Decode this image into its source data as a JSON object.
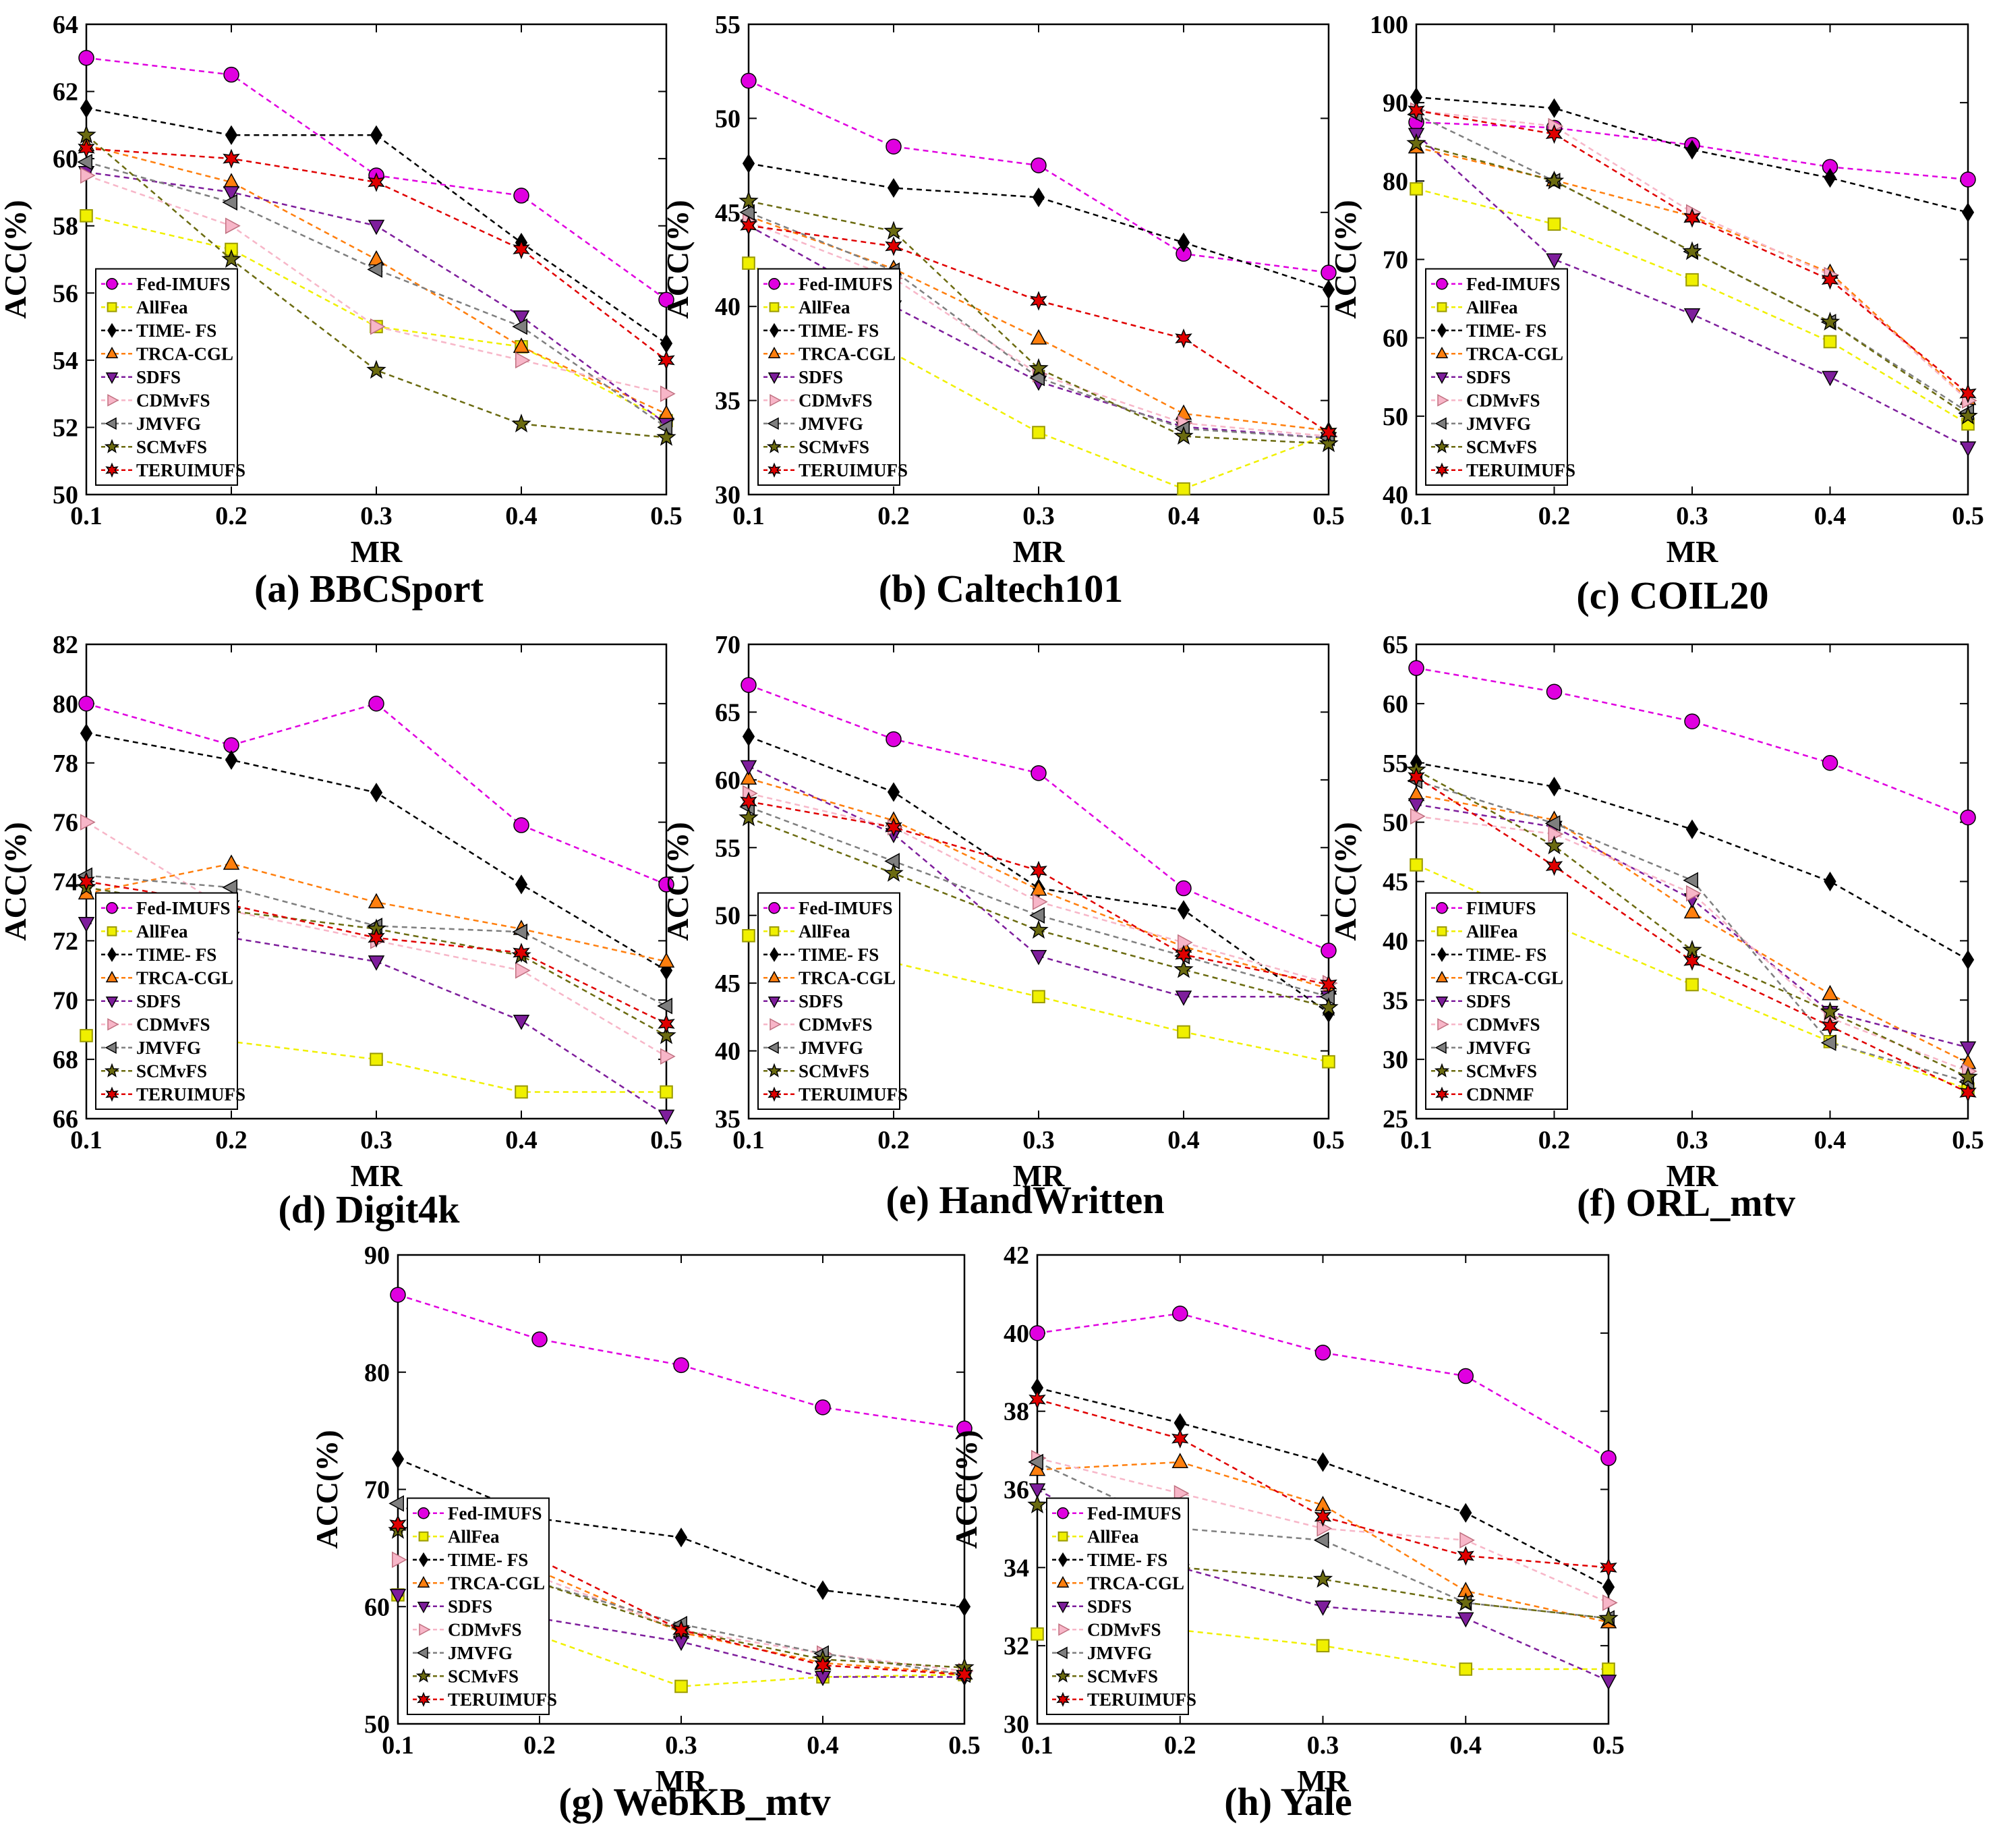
{
  "styles": {
    "Fed-IMUFS": {
      "color": "#e000e0",
      "marker": "circle"
    },
    "FIMUFS": {
      "color": "#e000e0",
      "marker": "circle"
    },
    "AllFea": {
      "color": "#f0f000",
      "marker": "square"
    },
    "TIME- FS": {
      "color": "#000000",
      "marker": "diamond"
    },
    "TRCA-CGL": {
      "color": "#ff7f0e",
      "marker": "triangle-up"
    },
    "SDFS": {
      "color": "#7e1e9c",
      "marker": "triangle-down"
    },
    "CDMvFS": {
      "color": "#f7b6c8",
      "marker": "triangle-right"
    },
    "JMVFG": {
      "color": "#7f7f7f",
      "marker": "triangle-left"
    },
    "SCMvFS": {
      "color": "#6b6b10",
      "marker": "star"
    },
    "TERUIMUFS": {
      "color": "#e00000",
      "marker": "star6"
    },
    "CDNMF": {
      "color": "#e00000",
      "marker": "star6"
    }
  },
  "chart_data": [
    {
      "type": "line",
      "caption": "(a) BBCSport",
      "xlabel": "MR",
      "ylabel": "ACC(%)",
      "x": [
        0.1,
        0.2,
        0.3,
        0.4,
        0.5
      ],
      "xlim": [
        0.1,
        0.5
      ],
      "ylim": [
        50,
        64
      ],
      "xticks": [
        "0.1",
        "0.2",
        "0.3",
        "0.4",
        "0.5"
      ],
      "yticks": [
        "50",
        "52",
        "54",
        "56",
        "58",
        "60",
        "62",
        "64"
      ],
      "legend": "bottom-left",
      "series": [
        {
          "name": "Fed-IMUFS",
          "values": [
            63.0,
            62.5,
            59.5,
            58.9,
            55.8
          ]
        },
        {
          "name": "AllFea",
          "values": [
            58.3,
            57.3,
            55.0,
            54.4,
            52.2
          ]
        },
        {
          "name": "TIME- FS",
          "values": [
            61.5,
            60.7,
            60.7,
            57.5,
            54.5
          ]
        },
        {
          "name": "TRCA-CGL",
          "values": [
            60.4,
            59.3,
            57.0,
            54.4,
            52.4
          ]
        },
        {
          "name": "SDFS",
          "values": [
            59.6,
            59.0,
            58.0,
            55.3,
            52.1
          ]
        },
        {
          "name": "CDMvFS",
          "values": [
            59.5,
            58.0,
            55.0,
            54.0,
            53.0
          ]
        },
        {
          "name": "JMVFG",
          "values": [
            59.9,
            58.7,
            56.7,
            55.0,
            52.0
          ]
        },
        {
          "name": "SCMvFS",
          "values": [
            60.7,
            57.0,
            53.7,
            52.1,
            51.7
          ]
        },
        {
          "name": "TERUIMUFS",
          "values": [
            60.3,
            60.0,
            59.3,
            57.3,
            54.0
          ]
        }
      ]
    },
    {
      "type": "line",
      "caption": "(b) Caltech101",
      "xlabel": "MR",
      "ylabel": "ACC(%)",
      "x": [
        0.1,
        0.2,
        0.3,
        0.4,
        0.5
      ],
      "xlim": [
        0.1,
        0.5
      ],
      "ylim": [
        30,
        55
      ],
      "xticks": [
        "0.1",
        "0.2",
        "0.3",
        "0.4",
        "0.5"
      ],
      "yticks": [
        "30",
        "35",
        "40",
        "45",
        "50",
        "55"
      ],
      "legend": "bottom-left",
      "series": [
        {
          "name": "Fed-IMUFS",
          "values": [
            52.0,
            48.5,
            47.5,
            42.8,
            41.8
          ]
        },
        {
          "name": "AllFea",
          "values": [
            42.3,
            37.5,
            33.3,
            30.3,
            33.2
          ]
        },
        {
          "name": "TIME- FS",
          "values": [
            47.6,
            46.3,
            45.8,
            43.4,
            40.9
          ]
        },
        {
          "name": "TRCA-CGL",
          "values": [
            44.8,
            42.0,
            38.3,
            34.3,
            33.4
          ]
        },
        {
          "name": "SDFS",
          "values": [
            44.3,
            40.0,
            36.0,
            33.6,
            33.0
          ]
        },
        {
          "name": "CDMvFS",
          "values": [
            44.5,
            41.5,
            36.4,
            33.8,
            33.1
          ]
        },
        {
          "name": "JMVFG",
          "values": [
            45.0,
            41.9,
            36.2,
            33.5,
            33.0
          ]
        },
        {
          "name": "SCMvFS",
          "values": [
            45.6,
            44.0,
            36.7,
            33.1,
            32.7
          ]
        },
        {
          "name": "TERUIMUFS",
          "values": [
            44.3,
            43.2,
            40.3,
            38.3,
            33.3
          ]
        }
      ]
    },
    {
      "type": "line",
      "caption": "(c) COIL20",
      "xlabel": "MR",
      "ylabel": "ACC(%)",
      "x": [
        0.1,
        0.2,
        0.3,
        0.4,
        0.5
      ],
      "xlim": [
        0.1,
        0.5
      ],
      "ylim": [
        40,
        100
      ],
      "xticks": [
        "0.1",
        "0.2",
        "0.3",
        "0.4",
        "0.5"
      ],
      "yticks": [
        "40",
        "50",
        "60",
        "70",
        "80",
        "90",
        "100"
      ],
      "legend": "bottom-left",
      "series": [
        {
          "name": "Fed-IMUFS",
          "values": [
            87.5,
            86.8,
            84.6,
            81.8,
            80.2
          ]
        },
        {
          "name": "AllFea",
          "values": [
            79.0,
            74.5,
            67.4,
            59.5,
            49.0
          ]
        },
        {
          "name": "TIME- FS",
          "values": [
            90.7,
            89.3,
            84.0,
            80.4,
            76.0
          ]
        },
        {
          "name": "TRCA-CGL",
          "values": [
            84.3,
            80.1,
            75.5,
            68.3,
            52.2
          ]
        },
        {
          "name": "SDFS",
          "values": [
            86.0,
            70.0,
            63.0,
            55.0,
            46.0
          ]
        },
        {
          "name": "CDMvFS",
          "values": [
            89.0,
            87.0,
            76.0,
            68.0,
            52.0
          ]
        },
        {
          "name": "JMVFG",
          "values": [
            88.5,
            80.0,
            71.0,
            62.0,
            50.5
          ]
        },
        {
          "name": "SCMvFS",
          "values": [
            84.8,
            80.0,
            71.0,
            62.0,
            50.0
          ]
        },
        {
          "name": "TERUIMUFS",
          "values": [
            89.0,
            86.0,
            75.3,
            67.4,
            52.9
          ]
        }
      ]
    },
    {
      "type": "line",
      "caption": "(d) Digit4k",
      "xlabel": "MR",
      "ylabel": "ACC(%)",
      "x": [
        0.1,
        0.2,
        0.3,
        0.4,
        0.5
      ],
      "xlim": [
        0.1,
        0.5
      ],
      "ylim": [
        66,
        82
      ],
      "xticks": [
        "0.1",
        "0.2",
        "0.3",
        "0.4",
        "0.5"
      ],
      "yticks": [
        "66",
        "68",
        "70",
        "72",
        "74",
        "76",
        "78",
        "80",
        "82"
      ],
      "legend": "bottom-left",
      "series": [
        {
          "name": "Fed-IMUFS",
          "values": [
            80.0,
            78.6,
            80.0,
            75.9,
            73.9
          ]
        },
        {
          "name": "AllFea",
          "values": [
            68.8,
            68.6,
            68.0,
            66.9,
            66.9
          ]
        },
        {
          "name": "TIME- FS",
          "values": [
            79.0,
            78.1,
            77.0,
            73.9,
            71.0
          ]
        },
        {
          "name": "TRCA-CGL",
          "values": [
            73.6,
            74.6,
            73.3,
            72.4,
            71.3
          ]
        },
        {
          "name": "SDFS",
          "values": [
            72.6,
            72.1,
            71.3,
            69.3,
            66.1
          ]
        },
        {
          "name": "CDMvFS",
          "values": [
            76.0,
            73.0,
            72.0,
            71.0,
            68.1
          ]
        },
        {
          "name": "JMVFG",
          "values": [
            74.2,
            73.8,
            72.5,
            72.3,
            69.8
          ]
        },
        {
          "name": "SCMvFS",
          "values": [
            73.8,
            73.0,
            72.4,
            71.5,
            68.8
          ]
        },
        {
          "name": "TERUIMUFS",
          "values": [
            74.0,
            73.2,
            72.1,
            71.6,
            69.2
          ]
        }
      ]
    },
    {
      "type": "line",
      "caption": "(e) HandWritten",
      "xlabel": "MR",
      "ylabel": "ACC(%)",
      "x": [
        0.1,
        0.2,
        0.3,
        0.4,
        0.5
      ],
      "xlim": [
        0.1,
        0.5
      ],
      "ylim": [
        35,
        70
      ],
      "xticks": [
        "0.1",
        "0.2",
        "0.3",
        "0.4",
        "0.5"
      ],
      "yticks": [
        "35",
        "40",
        "45",
        "50",
        "55",
        "60",
        "65",
        "70"
      ],
      "legend": "bottom-left",
      "series": [
        {
          "name": "Fed-IMUFS",
          "values": [
            67.0,
            63.0,
            60.5,
            52.0,
            47.4
          ]
        },
        {
          "name": "AllFea",
          "values": [
            48.5,
            46.5,
            44.0,
            41.4,
            39.2
          ]
        },
        {
          "name": "TIME- FS",
          "values": [
            63.2,
            59.1,
            52.0,
            50.4,
            42.8
          ]
        },
        {
          "name": "TRCA-CGL",
          "values": [
            60.1,
            57.0,
            51.9,
            47.7,
            44.6
          ]
        },
        {
          "name": "SDFS",
          "values": [
            61.0,
            56.0,
            47.0,
            44.0,
            44.0
          ]
        },
        {
          "name": "CDMvFS",
          "values": [
            59.0,
            56.5,
            51.0,
            48.0,
            45.0
          ]
        },
        {
          "name": "JMVFG",
          "values": [
            58.0,
            54.0,
            50.0,
            47.0,
            44.0
          ]
        },
        {
          "name": "SCMvFS",
          "values": [
            57.2,
            53.1,
            48.9,
            46.0,
            43.2
          ]
        },
        {
          "name": "TERUIMUFS",
          "values": [
            58.4,
            56.5,
            53.3,
            47.1,
            44.9
          ]
        }
      ]
    },
    {
      "type": "line",
      "caption": "(f) ORL_mtv",
      "xlabel": "MR",
      "ylabel": "ACC(%)",
      "x": [
        0.1,
        0.2,
        0.3,
        0.4,
        0.5
      ],
      "xlim": [
        0.1,
        0.5
      ],
      "ylim": [
        25,
        65
      ],
      "xticks": [
        "0.1",
        "0.2",
        "0.3",
        "0.4",
        "0.5"
      ],
      "yticks": [
        "25",
        "30",
        "35",
        "40",
        "45",
        "50",
        "55",
        "60",
        "65"
      ],
      "legend": "bottom-left",
      "series": [
        {
          "name": "FIMUFS",
          "values": [
            63.0,
            61.0,
            58.5,
            55.0,
            50.4
          ]
        },
        {
          "name": "AllFea",
          "values": [
            46.4,
            41.3,
            36.3,
            31.5,
            27.5
          ]
        },
        {
          "name": "TIME- FS",
          "values": [
            55.0,
            53.0,
            49.4,
            45.0,
            38.4
          ]
        },
        {
          "name": "TRCA-CGL",
          "values": [
            52.3,
            50.2,
            42.4,
            35.5,
            29.7
          ]
        },
        {
          "name": "SDFS",
          "values": [
            51.5,
            49.6,
            43.5,
            34.0,
            31.0
          ]
        },
        {
          "name": "CDMvFS",
          "values": [
            50.5,
            49.0,
            44.0,
            33.5,
            29.0
          ]
        },
        {
          "name": "JMVFG",
          "values": [
            53.5,
            49.9,
            45.1,
            31.4,
            28.1
          ]
        },
        {
          "name": "SCMvFS",
          "values": [
            54.4,
            48.0,
            39.2,
            34.0,
            28.5
          ]
        },
        {
          "name": "CDNMF",
          "values": [
            53.8,
            46.3,
            38.3,
            32.8,
            27.2
          ]
        }
      ]
    },
    {
      "type": "line",
      "caption": "(g) WebKB_mtv",
      "xlabel": "MR",
      "ylabel": "ACC(%)",
      "x": [
        0.1,
        0.2,
        0.3,
        0.4,
        0.5
      ],
      "xlim": [
        0.1,
        0.5
      ],
      "ylim": [
        50,
        90
      ],
      "xticks": [
        "0.1",
        "0.2",
        "0.3",
        "0.4",
        "0.5"
      ],
      "yticks": [
        "50",
        "60",
        "70",
        "80",
        "90"
      ],
      "legend": "bottom-left",
      "series": [
        {
          "name": "Fed-IMUFS",
          "values": [
            86.6,
            82.8,
            80.6,
            77.0,
            75.2
          ]
        },
        {
          "name": "AllFea",
          "values": [
            61.0,
            57.5,
            53.2,
            54.0,
            54.2
          ]
        },
        {
          "name": "TIME- FS",
          "values": [
            72.6,
            67.5,
            65.9,
            61.4,
            60.0
          ]
        },
        {
          "name": "TRCA-CGL",
          "values": [
            67.0,
            63.0,
            57.8,
            55.2,
            54.3
          ]
        },
        {
          "name": "SDFS",
          "values": [
            61.0,
            59.0,
            57.0,
            54.0,
            54.0
          ]
        },
        {
          "name": "CDMvFS",
          "values": [
            64.0,
            62.5,
            58.0,
            56.0,
            54.5
          ]
        },
        {
          "name": "JMVFG",
          "values": [
            68.8,
            62.0,
            58.5,
            56.0,
            54.2
          ]
        },
        {
          "name": "SCMvFS",
          "values": [
            66.5,
            62.0,
            58.0,
            55.5,
            54.8
          ]
        },
        {
          "name": "TERUIMUFS",
          "values": [
            67.0,
            64.0,
            58.0,
            55.0,
            54.2
          ]
        }
      ]
    },
    {
      "type": "line",
      "caption": "(h) Yale",
      "xlabel": "MR",
      "ylabel": "ACC(%)",
      "x": [
        0.1,
        0.2,
        0.3,
        0.4,
        0.5
      ],
      "xlim": [
        0.1,
        0.5
      ],
      "ylim": [
        30,
        42
      ],
      "xticks": [
        "0.1",
        "0.2",
        "0.3",
        "0.4",
        "0.5"
      ],
      "yticks": [
        "30",
        "32",
        "34",
        "36",
        "38",
        "40",
        "42"
      ],
      "legend": "bottom-left",
      "series": [
        {
          "name": "Fed-IMUFS",
          "values": [
            40.0,
            40.5,
            39.5,
            38.9,
            36.8
          ]
        },
        {
          "name": "AllFea",
          "values": [
            32.3,
            32.4,
            32.0,
            31.4,
            31.4
          ]
        },
        {
          "name": "TIME- FS",
          "values": [
            38.6,
            37.7,
            36.7,
            35.4,
            33.5
          ]
        },
        {
          "name": "TRCA-CGL",
          "values": [
            36.5,
            36.7,
            35.6,
            33.4,
            32.6
          ]
        },
        {
          "name": "SDFS",
          "values": [
            36.0,
            34.0,
            33.0,
            32.7,
            31.1
          ]
        },
        {
          "name": "CDMvFS",
          "values": [
            36.8,
            35.9,
            35.0,
            34.7,
            33.1
          ]
        },
        {
          "name": "JMVFG",
          "values": [
            36.7,
            35.0,
            34.7,
            33.1,
            32.7
          ]
        },
        {
          "name": "SCMvFS",
          "values": [
            35.6,
            34.0,
            33.7,
            33.1,
            32.7
          ]
        },
        {
          "name": "TERUIMUFS",
          "values": [
            38.3,
            37.3,
            35.3,
            34.3,
            34.0
          ]
        }
      ]
    }
  ]
}
